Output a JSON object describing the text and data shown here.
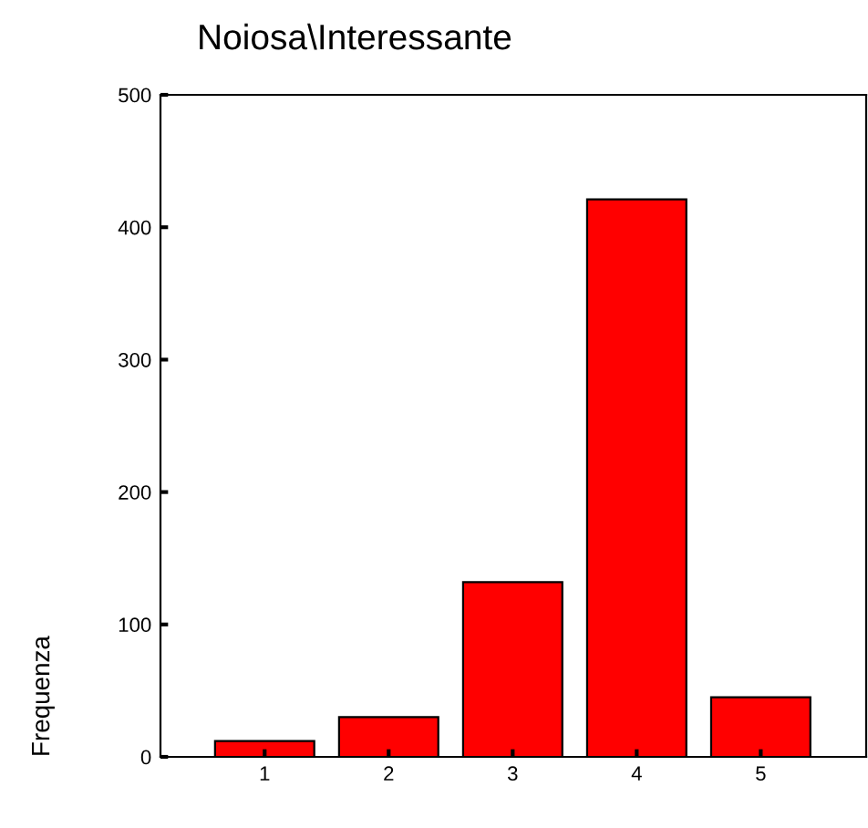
{
  "chart_data": {
    "type": "bar",
    "title": "Noiosa\\Interessante",
    "ylabel": "Frequenza",
    "categories": [
      "1",
      "2",
      "3",
      "4",
      "5"
    ],
    "values": [
      12,
      30,
      132,
      421,
      45
    ],
    "color": "#ff0000",
    "ylim": [
      0,
      500
    ],
    "yticks": [
      0,
      100,
      200,
      300,
      400,
      500
    ],
    "grid": false,
    "legend": false
  }
}
